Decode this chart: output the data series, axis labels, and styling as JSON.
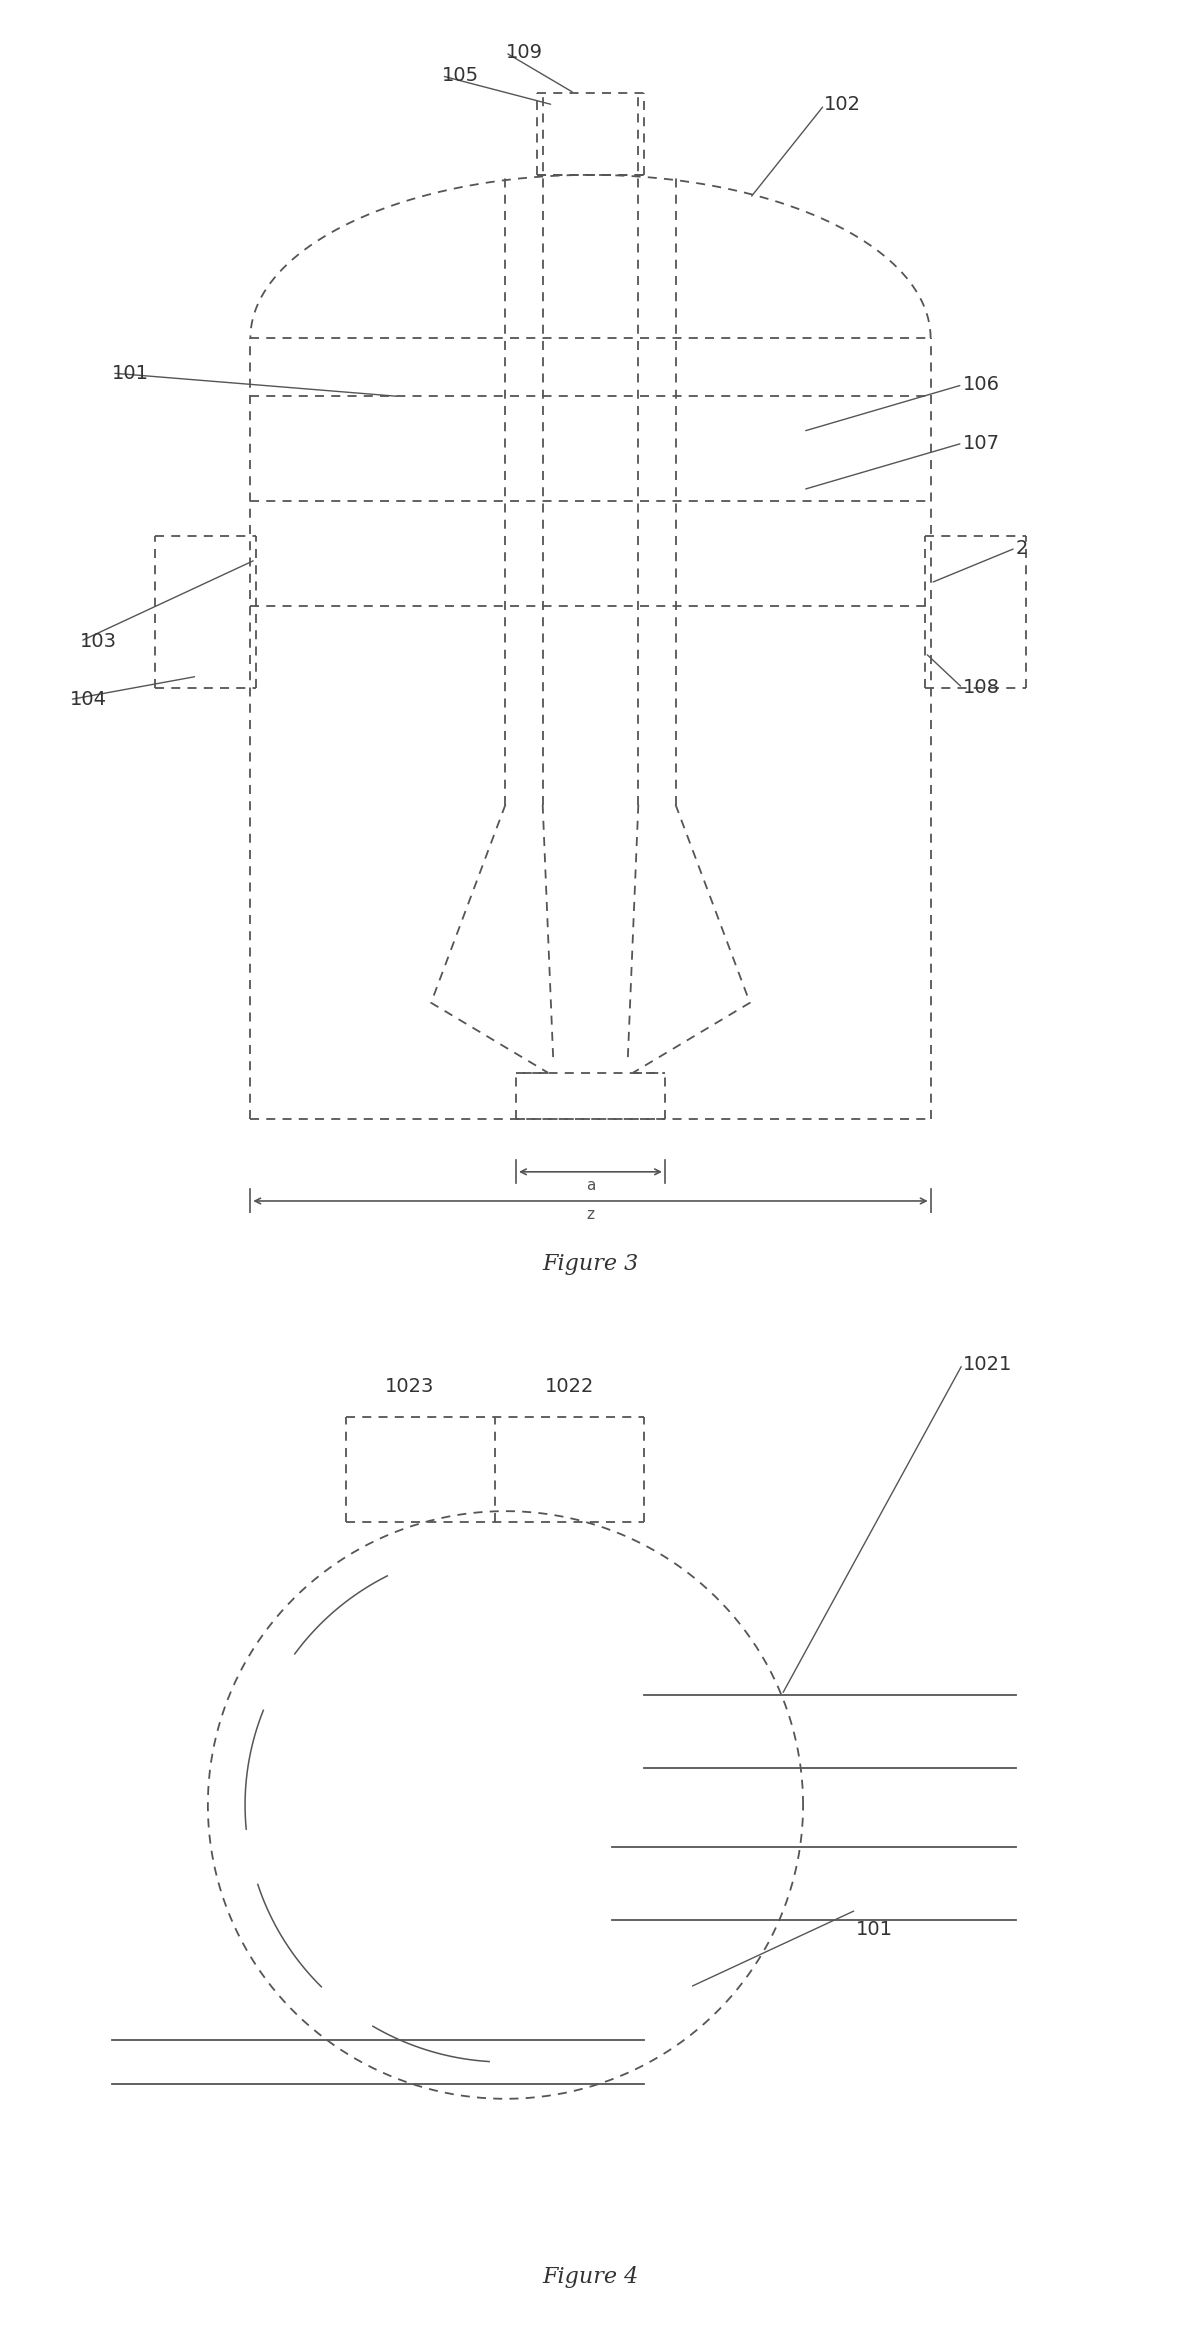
{
  "line_color": "#555555",
  "bg_color": "#ffffff",
  "text_color": "#333333",
  "font_size": 14,
  "fig3_title": "Figure 3",
  "fig4_title": "Figure 4"
}
